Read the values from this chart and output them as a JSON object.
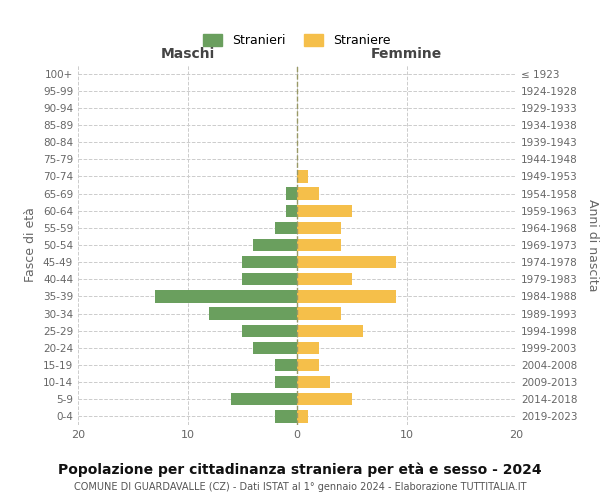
{
  "age_groups": [
    "0-4",
    "5-9",
    "10-14",
    "15-19",
    "20-24",
    "25-29",
    "30-34",
    "35-39",
    "40-44",
    "45-49",
    "50-54",
    "55-59",
    "60-64",
    "65-69",
    "70-74",
    "75-79",
    "80-84",
    "85-89",
    "90-94",
    "95-99",
    "100+"
  ],
  "birth_years": [
    "2019-2023",
    "2014-2018",
    "2009-2013",
    "2004-2008",
    "1999-2003",
    "1994-1998",
    "1989-1993",
    "1984-1988",
    "1979-1983",
    "1974-1978",
    "1969-1973",
    "1964-1968",
    "1959-1963",
    "1954-1958",
    "1949-1953",
    "1944-1948",
    "1939-1943",
    "1934-1938",
    "1929-1933",
    "1924-1928",
    "≤ 1923"
  ],
  "males": [
    2,
    6,
    2,
    2,
    4,
    5,
    8,
    13,
    5,
    5,
    4,
    2,
    1,
    1,
    0,
    0,
    0,
    0,
    0,
    0,
    0
  ],
  "females": [
    1,
    5,
    3,
    2,
    2,
    6,
    4,
    9,
    5,
    9,
    4,
    4,
    5,
    2,
    1,
    0,
    0,
    0,
    0,
    0,
    0
  ],
  "male_color": "#6a9f5e",
  "female_color": "#f5bf4a",
  "title": "Popolazione per cittadinanza straniera per età e sesso - 2024",
  "subtitle": "COMUNE DI GUARDAVALLE (CZ) - Dati ISTAT al 1° gennaio 2024 - Elaborazione TUTTITALIA.IT",
  "ylabel_left": "Fasce di età",
  "ylabel_right": "Anni di nascita",
  "xlabel_left": "Maschi",
  "xlabel_right": "Femmine",
  "legend_stranieri": "Stranieri",
  "legend_straniere": "Straniere",
  "xlim": 20,
  "bg_color": "#ffffff",
  "grid_color": "#cccccc",
  "tick_color": "#888888",
  "label_color": "#666666"
}
